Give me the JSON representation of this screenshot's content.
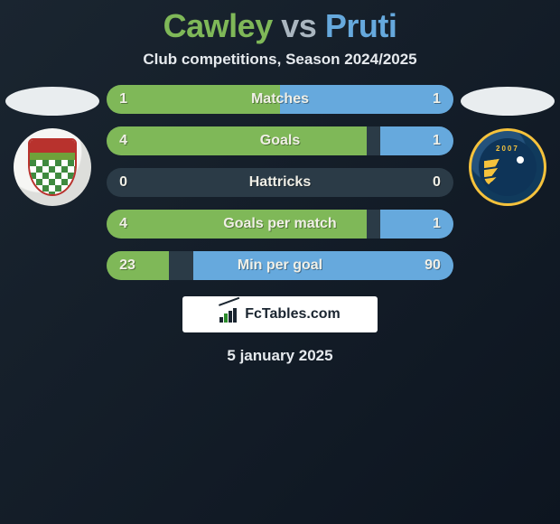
{
  "title": {
    "player1": "Cawley",
    "vs": "vs",
    "player2": "Pruti"
  },
  "subtitle": "Club competitions, Season 2024/2025",
  "colors": {
    "player1": "#7fb858",
    "player2": "#66a9dd",
    "bar_bg": "#2b3b47"
  },
  "badges": {
    "left": {
      "type": "shield-checker",
      "year": ""
    },
    "right": {
      "type": "wing",
      "year": "2007",
      "outline": "#f5c23c"
    }
  },
  "stats": [
    {
      "label": "Matches",
      "left_val": "1",
      "right_val": "1",
      "left_pct": 50,
      "right_pct": 50
    },
    {
      "label": "Goals",
      "left_val": "4",
      "right_val": "1",
      "left_pct": 75,
      "right_pct": 21
    },
    {
      "label": "Hattricks",
      "left_val": "0",
      "right_val": "0",
      "left_pct": 0,
      "right_pct": 0
    },
    {
      "label": "Goals per match",
      "left_val": "4",
      "right_val": "1",
      "left_pct": 75,
      "right_pct": 21
    },
    {
      "label": "Min per goal",
      "left_val": "23",
      "right_val": "90",
      "left_pct": 18,
      "right_pct": 75
    }
  ],
  "brand": "FcTables.com",
  "date": "5 january 2025"
}
